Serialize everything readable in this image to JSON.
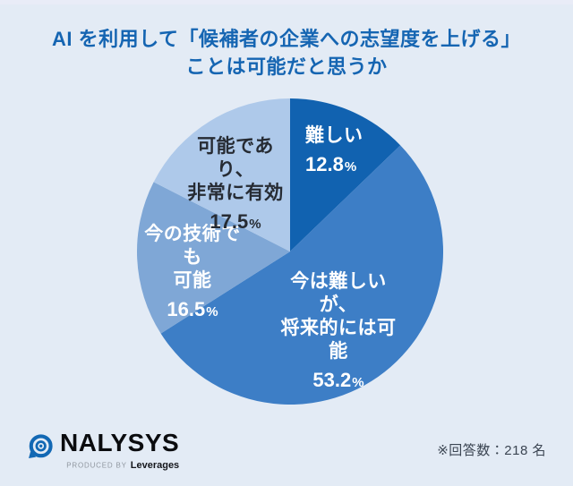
{
  "title": {
    "line1": "AI を利用して「候補者の企業への志望度を上げる」",
    "line2": "ことは可能だと思うか"
  },
  "chart_data": {
    "type": "pie",
    "title": "AI を利用して「候補者の企業への志望度を上げる」ことは可能だと思うか",
    "unit": "%",
    "respondents": 218,
    "start_angle_deg": 0,
    "clockwise": true,
    "legend": "none",
    "label_position": "on-slice",
    "slices": [
      {
        "label": "難しい",
        "value": 12.8,
        "pct": "12.8",
        "color": "#1162b0",
        "label_color": "#ffffff",
        "label_lines": [
          "難しい"
        ]
      },
      {
        "label": "今は難しいが、将来的には可能",
        "value": 53.2,
        "pct": "53.2",
        "color": "#3d7ec6",
        "label_color": "#ffffff",
        "label_lines": [
          "今は難しいが、",
          "将来的には可能"
        ]
      },
      {
        "label": "今の技術でも可能",
        "value": 16.5,
        "pct": "16.5",
        "color": "#7fa7d6",
        "label_color": "#ffffff",
        "label_lines": [
          "今の技術でも",
          "可能"
        ]
      },
      {
        "label": "可能であり、非常に有効",
        "value": 17.5,
        "pct": "17.5",
        "color": "#aec9ea",
        "label_color": "#262b33",
        "label_lines": [
          "可能であり、",
          "非常に有効"
        ]
      }
    ]
  },
  "footer": {
    "logo_text": "NALYSYS",
    "produced_by": "PRODUCED BY",
    "producer": "Leverages",
    "note": "※回答数：218 名"
  },
  "colors": {
    "background": "#e3ebf5",
    "title_text": "#1565b2",
    "note_text": "#3c4653",
    "logo_blue": "#1268b4"
  }
}
